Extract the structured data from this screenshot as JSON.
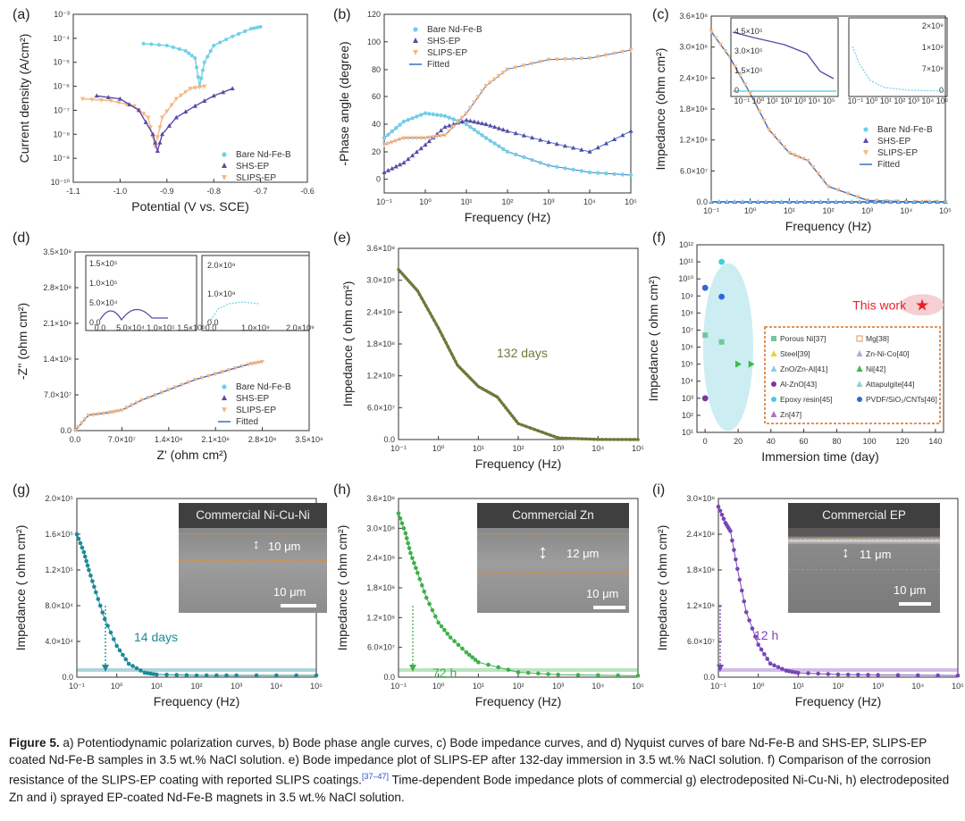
{
  "caption": {
    "figure": "Figure 5.",
    "text": " a) Potentiodynamic polarization curves, b) Bode phase angle curves, c) Bode impedance curves, and d) Nyquist curves of bare Nd-Fe-B and SHS-EP, SLIPS-EP coated Nd-Fe-B samples in 3.5 wt.% NaCl solution. e) Bode impedance plot of SLIPS-EP after 132-day immersion in 3.5 wt.% NaCl solution. f) Comparison of the corrosion resistance of the SLIPS-EP coating with reported SLIPS coatings.",
    "ref": "[37–47]",
    "text2": " Time-dependent Bode impedance plots of commercial g) electrodeposited Ni-Cu-Ni, h) electrodeposited Zn and i) sprayed EP-coated Nd-Fe-B magnets in 3.5 wt.% NaCl solution."
  },
  "colors": {
    "bare": "#6fd0e6",
    "shs": "#5a4aa8",
    "slips": "#f4b884",
    "fitted": "#3a6fc4",
    "e": "#6b7a3a",
    "f_ellipse": "#bfe9ef",
    "g": "#1b8a99",
    "h": "#3fb04a",
    "i": "#7a45b8",
    "thiswork": "#e8202a"
  },
  "panels": {
    "a": {
      "label": "(a)",
      "xlabel": "Potential (V vs. SCE)",
      "ylabel": "Current density (A/cm²)",
      "xticks": [
        "-1.1",
        "-1.0",
        "-0.9",
        "-0.8",
        "-0.7",
        "-0.6"
      ],
      "yticks": [
        "10⁻¹⁰",
        "10⁻⁹",
        "10⁻⁸",
        "10⁻⁷",
        "10⁻⁶",
        "10⁻⁵",
        "10⁻⁴",
        "10⁻³"
      ],
      "legend": [
        "Bare Nd-Fe-B",
        "SHS-EP",
        "SLIPS-EP"
      ]
    },
    "b": {
      "label": "(b)",
      "xlabel": "Frequency (Hz)",
      "ylabel": "-Phase angle (degree)",
      "xticks": [
        "10⁻¹",
        "10⁰",
        "10¹",
        "10²",
        "10³",
        "10⁴",
        "10⁵"
      ],
      "yticks": [
        "0",
        "20",
        "40",
        "60",
        "80",
        "100",
        "120"
      ],
      "legend": [
        "Bare Nd-Fe-B",
        "SHS-EP",
        "SLIPS-EP",
        "Fitted"
      ]
    },
    "c": {
      "label": "(c)",
      "xlabel": "Frequency (Hz)",
      "ylabel": "Impedance (ohm cm²)",
      "xticks": [
        "10⁻¹",
        "10⁰",
        "10¹",
        "10²",
        "10³",
        "10⁴",
        "10⁵"
      ],
      "yticks": [
        "0.0",
        "6.0×10⁷",
        "1.2×10⁸",
        "1.8×10⁸",
        "2.4×10⁸",
        "3.0×10⁸",
        "3.6×10⁸"
      ],
      "legend": [
        "Bare Nd-Fe-B",
        "SHS-EP",
        "SLIPS-EP",
        "Fitted"
      ],
      "inset1_yticks": [
        "0",
        "1.5×10⁵",
        "3.0×10⁵",
        "4.5×10⁵"
      ],
      "inset2_yticks": [
        "0",
        "7×10⁸",
        "1×10⁹",
        "2×10⁹"
      ],
      "inset_xticks": "10⁻¹ 10⁰ 10¹ 10² 10³ 10⁴ 10⁵"
    },
    "d": {
      "label": "(d)",
      "xlabel": "Z' (ohm cm²)",
      "ylabel": "-Z'' (ohm cm²)",
      "xticks": [
        "0.0",
        "7.0×10⁷",
        "1.4×10⁸",
        "2.1×10⁸",
        "2.8×10⁸",
        "3.5×10⁸"
      ],
      "yticks": [
        "0.0",
        "7.0×10⁷",
        "1.4×10⁸",
        "2.1×10⁸",
        "2.8×10⁸",
        "3.5×10⁸"
      ],
      "legend": [
        "Bare Nd-Fe-B",
        "SHS-EP",
        "SLIPS-EP",
        "Fitted"
      ],
      "inset1_xticks": [
        "0.0",
        "5.0×10⁴",
        "1.0×10⁵",
        "1.5×10⁵"
      ],
      "inset1_yticks": [
        "0.0",
        "5.0×10⁴",
        "1.0×10⁵",
        "1.5×10⁵"
      ],
      "inset2_xticks": [
        "0.0",
        "1.0×10⁹",
        "2.0×10⁹"
      ],
      "inset2_yticks": [
        "0.0",
        "1.0×10⁹",
        "2.0×10⁹"
      ]
    },
    "e": {
      "label": "(e)",
      "xlabel": "Frequency (Hz)",
      "ylabel": "Impedance ( ohm cm²)",
      "annotation": "132 days",
      "xticks": [
        "10⁻¹",
        "10⁰",
        "10¹",
        "10²",
        "10³",
        "10⁴",
        "10⁵"
      ],
      "yticks": [
        "0.0",
        "6.0×10⁷",
        "1.2×10⁸",
        "1.8×10⁸",
        "2.4×10⁸",
        "3.0×10⁸",
        "3.6×10⁸"
      ]
    },
    "f": {
      "label": "(f)",
      "xlabel": "Immersion time (day)",
      "ylabel": "Impedance ( ohm cm²)",
      "annotation": "This work",
      "xticks": [
        "0",
        "20",
        "40",
        "60",
        "80",
        "100",
        "120",
        "140"
      ],
      "yticks": [
        "10¹",
        "10²",
        "10³",
        "10⁴",
        "10⁵",
        "10⁶",
        "10⁷",
        "10⁸",
        "10⁹",
        "10¹⁰",
        "10¹¹",
        "10¹²"
      ],
      "legend": [
        {
          "label": "Porous Ni",
          "ref": "[37]",
          "color": "#6fc79a",
          "shape": "square"
        },
        {
          "label": "Mg",
          "ref": "[38]",
          "color": "#e0935a",
          "shape": "osquare"
        },
        {
          "label": "Steel",
          "ref": "[39]",
          "color": "#e8d23a",
          "shape": "triangle"
        },
        {
          "label": "Zn-Ni-Co",
          "ref": "[40]",
          "color": "#b4a8e0",
          "shape": "diamond"
        },
        {
          "label": "ZnO/Zn-Al",
          "ref": "[41]",
          "color": "#8ccbe8",
          "shape": "dtriangle"
        },
        {
          "label": "Ni",
          "ref": "[42]",
          "color": "#3aba4a",
          "shape": "rtriangle"
        },
        {
          "label": "Al-ZnO",
          "ref": "[43]",
          "color": "#7a3a9a",
          "shape": "hexagon"
        },
        {
          "label": "Attapulgite",
          "ref": "[44]",
          "color": "#9ad0c8",
          "shape": "ltriangle"
        },
        {
          "label": "Epoxy resin",
          "ref": "[45]",
          "color": "#3fd0e0",
          "shape": "circle"
        },
        {
          "label": "PVDF/SiO₂/CNTs",
          "ref": "[46]",
          "color": "#2a6ad8",
          "shape": "circle"
        },
        {
          "label": "Zn",
          "ref": "[47]",
          "color": "#b070c8",
          "shape": "oltriangle"
        }
      ]
    },
    "g": {
      "label": "(g)",
      "xlabel": "Frequency (Hz)",
      "ylabel": "Impedance ( ohm cm²)",
      "annotation": "14 days",
      "sem_title": "Commercial Ni-Cu-Ni",
      "sem_thick": "10 μm",
      "sem_scale": "10 μm",
      "xticks": [
        "10⁻¹",
        "10⁰",
        "10¹",
        "10²",
        "10³",
        "10⁴",
        "10⁵"
      ],
      "yticks": [
        "0.0",
        "4.0×10⁴",
        "8.0×10⁴",
        "1.2×10⁵",
        "1.6×10⁵",
        "2.0×10⁵"
      ]
    },
    "h": {
      "label": "(h)",
      "xlabel": "Frequency (Hz)",
      "ylabel": "Impedance ( ohm cm²)",
      "annotation": "72 h",
      "sem_title": "Commercial Zn",
      "sem_thick": "12 μm",
      "sem_scale": "10 μm",
      "xticks": [
        "10⁻¹",
        "10⁰",
        "10¹",
        "10²",
        "10³",
        "10⁴",
        "10⁵"
      ],
      "yticks": [
        "0.0",
        "6.0×10⁷",
        "1.2×10⁸",
        "1.8×10⁸",
        "2.4×10⁸",
        "3.0×10⁸",
        "3.6×10⁸"
      ]
    },
    "i": {
      "label": "(i)",
      "xlabel": "Frequency (Hz)",
      "ylabel": "Impedance ( ohm cm²)",
      "annotation": "12 h",
      "sem_title": "Commercial EP",
      "sem_thick": "11 μm",
      "sem_scale": "10 μm",
      "xticks": [
        "10⁻¹",
        "10⁰",
        "10¹",
        "10²",
        "10³",
        "10⁴",
        "10⁵"
      ],
      "yticks": [
        "0.0",
        "6.0×10⁷",
        "1.2×10⁸",
        "1.8×10⁸",
        "2.4×10⁸",
        "3.0×10⁸"
      ]
    }
  },
  "chart_data": [
    {
      "type": "line",
      "panel": "a",
      "xlabel": "Potential (V vs. SCE)",
      "ylabel": "Current density (A/cm²)",
      "yscale": "log",
      "xlim": [
        -1.1,
        -0.6
      ],
      "ylim": [
        1e-10,
        0.001
      ],
      "series": [
        {
          "name": "Bare Nd-Fe-B",
          "x": [
            -0.95,
            -0.9,
            -0.86,
            -0.84,
            -0.83,
            -0.82,
            -0.8,
            -0.76,
            -0.72,
            -0.7
          ],
          "y": [
            6e-05,
            5e-05,
            3e-05,
            1.5e-05,
            1e-06,
            1e-05,
            5e-05,
            0.00012,
            0.00025,
            0.0003
          ]
        },
        {
          "name": "SHS-EP",
          "x": [
            -1.05,
            -1.0,
            -0.96,
            -0.93,
            -0.92,
            -0.91,
            -0.88,
            -0.84,
            -0.8,
            -0.76
          ],
          "y": [
            4e-07,
            3e-07,
            1e-07,
            1e-08,
            2e-09,
            1e-08,
            5e-08,
            1.5e-07,
            4e-07,
            8e-07
          ]
        },
        {
          "name": "SLIPS-EP",
          "x": [
            -1.08,
            -1.02,
            -0.97,
            -0.94,
            -0.925,
            -0.91,
            -0.88,
            -0.85,
            -0.82
          ],
          "y": [
            3e-07,
            2.5e-07,
            1.5e-07,
            5e-08,
            3e-09,
            5e-08,
            3e-07,
            8e-07,
            1e-06
          ]
        }
      ]
    },
    {
      "type": "line",
      "panel": "b",
      "xlabel": "Frequency (Hz)",
      "ylabel": "-Phase angle (degree)",
      "xscale": "log",
      "xlim": [
        0.1,
        100000
      ],
      "ylim": [
        -10,
        120
      ],
      "series": [
        {
          "name": "Bare Nd-Fe-B",
          "x": [
            0.1,
            0.3,
            1,
            3,
            10,
            30,
            100,
            1000,
            10000,
            100000
          ],
          "y": [
            30,
            42,
            48,
            46,
            40,
            30,
            20,
            10,
            5,
            3
          ]
        },
        {
          "name": "SHS-EP",
          "x": [
            0.1,
            0.3,
            1,
            3,
            10,
            30,
            100,
            1000,
            10000,
            100000
          ],
          "y": [
            5,
            12,
            25,
            38,
            43,
            40,
            35,
            27,
            20,
            35
          ]
        },
        {
          "name": "SLIPS-EP",
          "x": [
            0.1,
            0.3,
            1,
            3,
            10,
            30,
            100,
            1000,
            10000,
            100000
          ],
          "y": [
            25,
            30,
            30,
            32,
            48,
            68,
            80,
            87,
            88,
            94
          ]
        }
      ]
    },
    {
      "type": "line",
      "panel": "c",
      "xlabel": "Frequency (Hz)",
      "ylabel": "Impedance (ohm cm²)",
      "xscale": "log",
      "xlim": [
        0.1,
        100000
      ],
      "ylim": [
        0,
        360000000
      ],
      "series": [
        {
          "name": "SLIPS-EP",
          "x": [
            0.1,
            0.3,
            1,
            3,
            10,
            30,
            100,
            1000,
            10000,
            100000
          ],
          "y": [
            330000000,
            280000000,
            210000000,
            140000000,
            95000000,
            80000000,
            30000000,
            3000000,
            300000,
            30000
          ]
        },
        {
          "name": "SHS-EP",
          "x": [
            0.1,
            100000
          ],
          "y": [
            0,
            0
          ]
        },
        {
          "name": "Bare Nd-Fe-B",
          "x": [
            0.1,
            100000
          ],
          "y": [
            0,
            0
          ]
        }
      ]
    },
    {
      "type": "line",
      "panel": "d",
      "xlabel": "Z' (ohm cm²)",
      "ylabel": "-Z'' (ohm cm²)",
      "xlim": [
        0,
        350000000
      ],
      "ylim": [
        0,
        350000000
      ],
      "series": [
        {
          "name": "SLIPS-EP",
          "x": [
            0,
            20000000,
            50000000,
            70000000,
            100000000,
            140000000,
            180000000,
            220000000,
            260000000,
            280000000
          ],
          "y": [
            0,
            30000000,
            35000000,
            40000000,
            60000000,
            80000000,
            100000000,
            115000000,
            130000000,
            135000000
          ]
        }
      ]
    },
    {
      "type": "line",
      "panel": "e",
      "xlabel": "Frequency (Hz)",
      "ylabel": "Impedance ( ohm cm²)",
      "xscale": "log",
      "xlim": [
        0.1,
        100000
      ],
      "ylim": [
        0,
        360000000
      ],
      "series": [
        {
          "name": "",
          "x": [
            0.1,
            0.3,
            1,
            3,
            10,
            30,
            100,
            1000,
            10000,
            100000
          ],
          "y": [
            320000000,
            280000000,
            210000000,
            140000000,
            100000000,
            80000000,
            30000000,
            3000000,
            300000,
            30000
          ]
        }
      ]
    },
    {
      "type": "scatter",
      "panel": "f",
      "xlabel": "Immersion time (day)",
      "ylabel": "Impedance ( ohm cm²)",
      "yscale": "log",
      "xlim": [
        -5,
        145
      ],
      "ylim": [
        10,
        1000000000000.0
      ],
      "series": [
        {
          "name": "Epoxy resin",
          "x": [
            10
          ],
          "y": [
            100000000000.0
          ]
        },
        {
          "name": "PVDF/SiO₂/CNTs",
          "x": [
            0,
            10
          ],
          "y": [
            3000000000.0,
            900000000.0
          ]
        },
        {
          "name": "Porous Ni",
          "x": [
            0,
            10
          ],
          "y": [
            5000000.0,
            2000000.0
          ]
        },
        {
          "name": "Ni",
          "x": [
            20,
            28
          ],
          "y": [
            100000.0,
            100000.0
          ]
        },
        {
          "name": "Al-ZnO",
          "x": [
            0
          ],
          "y": [
            1000.0
          ]
        },
        {
          "name": "This work",
          "x": [
            132
          ],
          "y": [
            300000000.0
          ]
        }
      ]
    },
    {
      "type": "scatter",
      "panel": "g",
      "xlabel": "Frequency (Hz)",
      "ylabel": "Impedance ( ohm cm²)",
      "xscale": "log",
      "xlim": [
        0.1,
        100000
      ],
      "ylim": [
        0,
        200000
      ],
      "series": [
        {
          "name": "",
          "x": [
            0.1,
            0.15,
            0.2,
            0.3,
            0.5,
            1,
            2,
            5,
            10,
            100,
            1000,
            100000
          ],
          "y": [
            160000,
            140000,
            120000,
            95000,
            65000,
            35000,
            15000,
            5000,
            3000,
            2000,
            2000,
            2000
          ]
        }
      ]
    },
    {
      "type": "scatter",
      "panel": "h",
      "xlabel": "Frequency (Hz)",
      "ylabel": "Impedance ( ohm cm²)",
      "xscale": "log",
      "xlim": [
        0.1,
        100000
      ],
      "ylim": [
        0,
        360000000
      ],
      "series": [
        {
          "name": "",
          "x": [
            0.1,
            0.15,
            0.2,
            0.3,
            0.5,
            1,
            2,
            5,
            10,
            100,
            1000,
            100000
          ],
          "y": [
            330000000,
            290000000,
            250000000,
            210000000,
            160000000,
            110000000,
            80000000,
            50000000,
            30000000,
            10000000,
            5000000,
            3000000
          ]
        }
      ]
    },
    {
      "type": "scatter",
      "panel": "i",
      "xlabel": "Frequency (Hz)",
      "ylabel": "Impedance ( ohm cm²)",
      "xscale": "log",
      "xlim": [
        0.1,
        100000
      ],
      "ylim": [
        0,
        330000000
      ],
      "series": [
        {
          "name": "",
          "x": [
            0.1,
            0.15,
            0.2,
            0.3,
            0.5,
            1,
            2,
            5,
            10,
            100,
            1000,
            100000
          ],
          "y": [
            315000000,
            285000000,
            270000000,
            200000000,
            120000000,
            60000000,
            25000000,
            12000000,
            8000000,
            5000000,
            4000000,
            3000000
          ]
        }
      ]
    }
  ]
}
